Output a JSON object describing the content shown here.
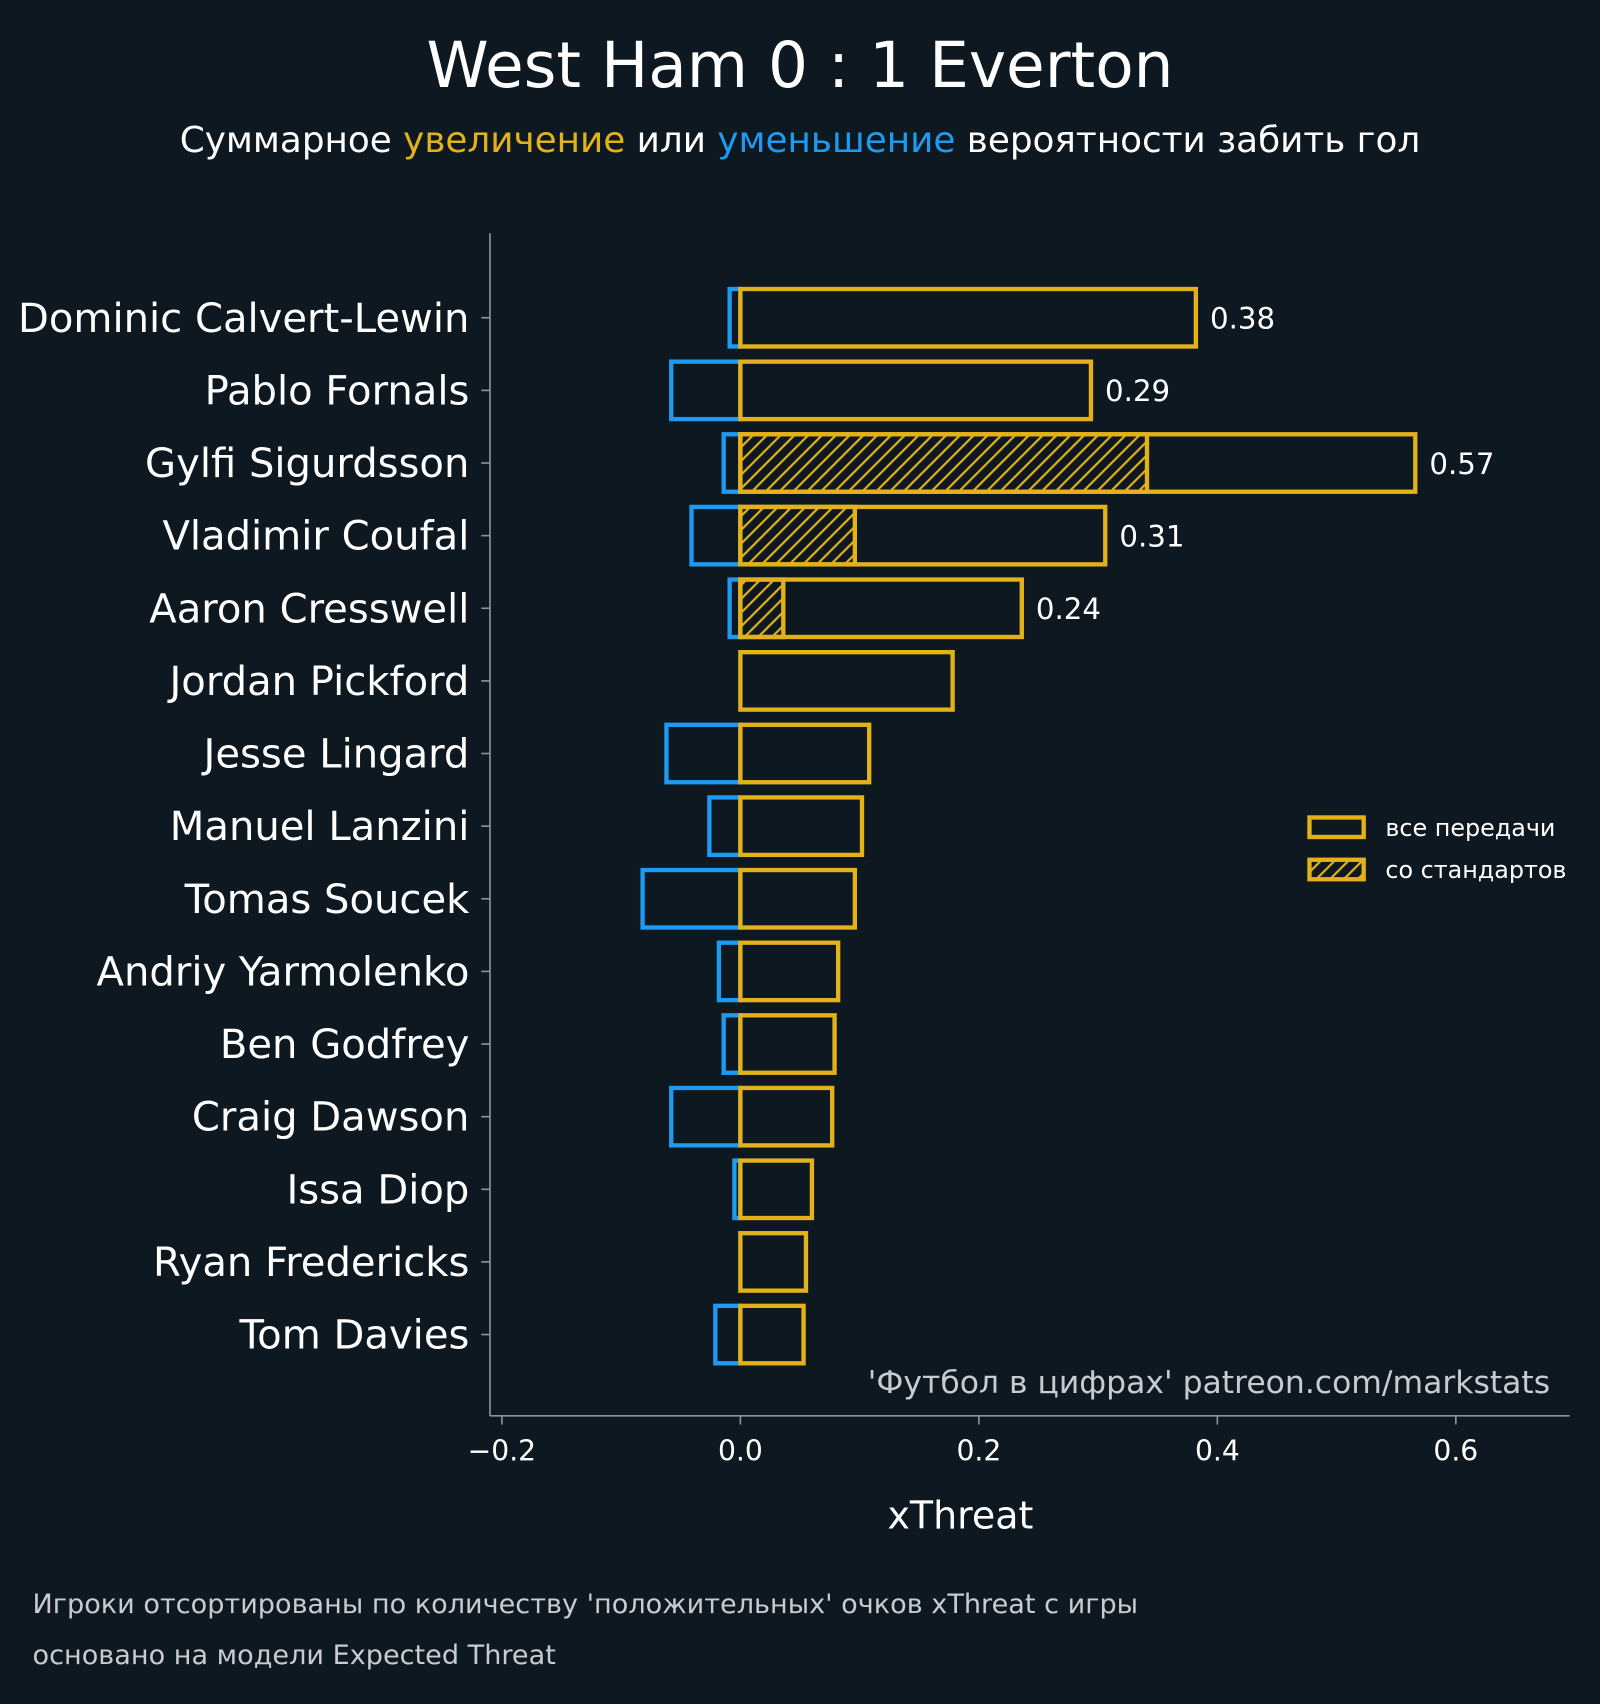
{
  "colors": {
    "background": "#0e1820",
    "positive": "#e3b21a",
    "negative": "#1e9bf0",
    "text": "#ffffff",
    "muted": "#c8ccd0",
    "axis": "#8a949c"
  },
  "header": {
    "title": "West Ham 0 : 1 Everton",
    "subtitle_parts": [
      "Суммарное ",
      "увеличение",
      " или ",
      "уменьшение",
      " вероятности забить гол"
    ]
  },
  "watermark": "'Футбол в цифрах' patreon.com/markstats",
  "footer": {
    "line1": "Игроки отсортированы по количеству 'положительных' очков xThreat с игры",
    "line2": "основано на модели Expected Threat"
  },
  "chart_data": {
    "type": "bar",
    "orientation": "horizontal",
    "title": "West Ham 0 : 1 Everton",
    "xlabel": "xThreat",
    "xlim": [
      -0.21,
      0.695
    ],
    "xticks": [
      -0.2,
      0.0,
      0.2,
      0.4,
      0.6
    ],
    "xtick_labels": [
      "−0.2",
      "0.0",
      "0.2",
      "0.4",
      "0.6"
    ],
    "grid": false,
    "legend": {
      "placement": "right",
      "entries": [
        "все передачи",
        "со стандартов"
      ]
    },
    "categories": [
      "Dominic Calvert-Lewin",
      "Pablo Fornals",
      "Gylfi Sigurdsson",
      "Vladimir Coufal",
      "Aaron Cresswell",
      "Jordan Pickford",
      "Jesse Lingard",
      "Manuel Lanzini",
      "Tomas Soucek",
      "Andriy Yarmolenko",
      "Ben Godfrey",
      "Craig Dawson",
      "Issa Diop",
      "Ryan Fredericks",
      "Tom Davies"
    ],
    "series": [
      {
        "name": "все передачи",
        "values": [
          0.382,
          0.294,
          0.566,
          0.306,
          0.236,
          0.178,
          0.108,
          0.102,
          0.096,
          0.082,
          0.079,
          0.077,
          0.06,
          0.055,
          0.053
        ]
      },
      {
        "name": "со стандартов",
        "values": [
          0,
          0,
          0.341,
          0.096,
          0.036,
          0,
          0,
          0,
          0,
          0,
          0,
          0,
          0,
          0,
          0
        ]
      },
      {
        "values": [
          -0.009,
          -0.058,
          -0.014,
          -0.041,
          -0.009,
          0,
          -0.062,
          -0.026,
          -0.082,
          -0.018,
          -0.014,
          -0.058,
          -0.005,
          0,
          -0.021
        ]
      }
    ],
    "data_labels": [
      "0.38",
      "0.29",
      "0.57",
      "0.31",
      "0.24",
      "",
      "",
      "",
      "",
      "",
      "",
      "",
      "",
      "",
      ""
    ]
  }
}
